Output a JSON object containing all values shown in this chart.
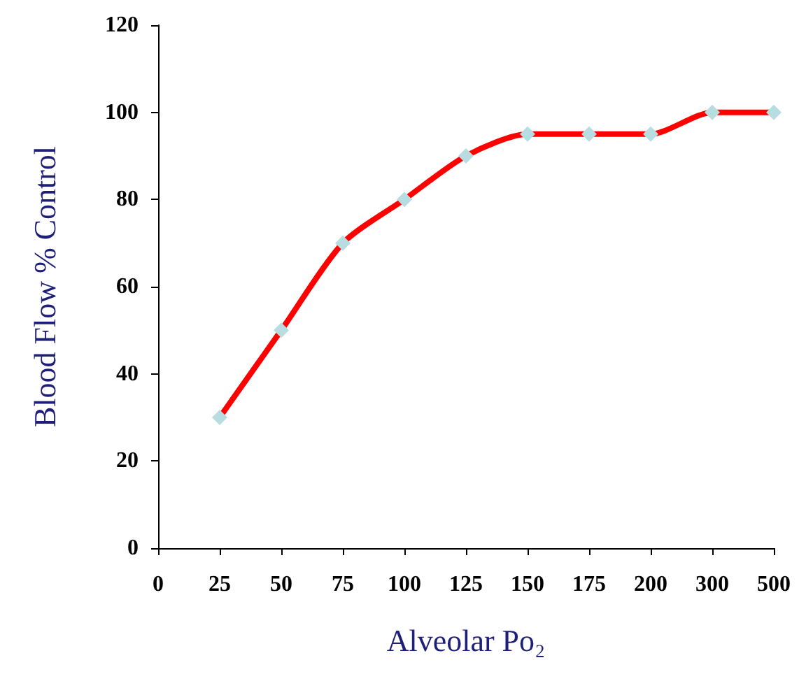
{
  "chart_data": {
    "type": "line",
    "xlabel": "Alveolar Po₂",
    "ylabel": "Blood Flow % Control",
    "categories": [
      "0",
      "25",
      "50",
      "75",
      "100",
      "125",
      "150",
      "175",
      "200",
      "300",
      "500"
    ],
    "series": [
      {
        "color": "#ff0000",
        "values": [
          null,
          30,
          50,
          70,
          80,
          90,
          95,
          95,
          95,
          100,
          100
        ],
        "colors": [
          null,
          "#b7dde0",
          "#b7dde0",
          "#b7dde0",
          "#b7dde0",
          "#b7dde0",
          "#b7dde0",
          "#b7dde0",
          "#b7dde0",
          "#b7dde0",
          "#b7dde0"
        ]
      }
    ],
    "ylim": [
      0,
      120
    ],
    "yticks": [
      0,
      20,
      40,
      60,
      80,
      100,
      120
    ],
    "grid": false,
    "marker": "diamond",
    "line_style": "solid"
  }
}
